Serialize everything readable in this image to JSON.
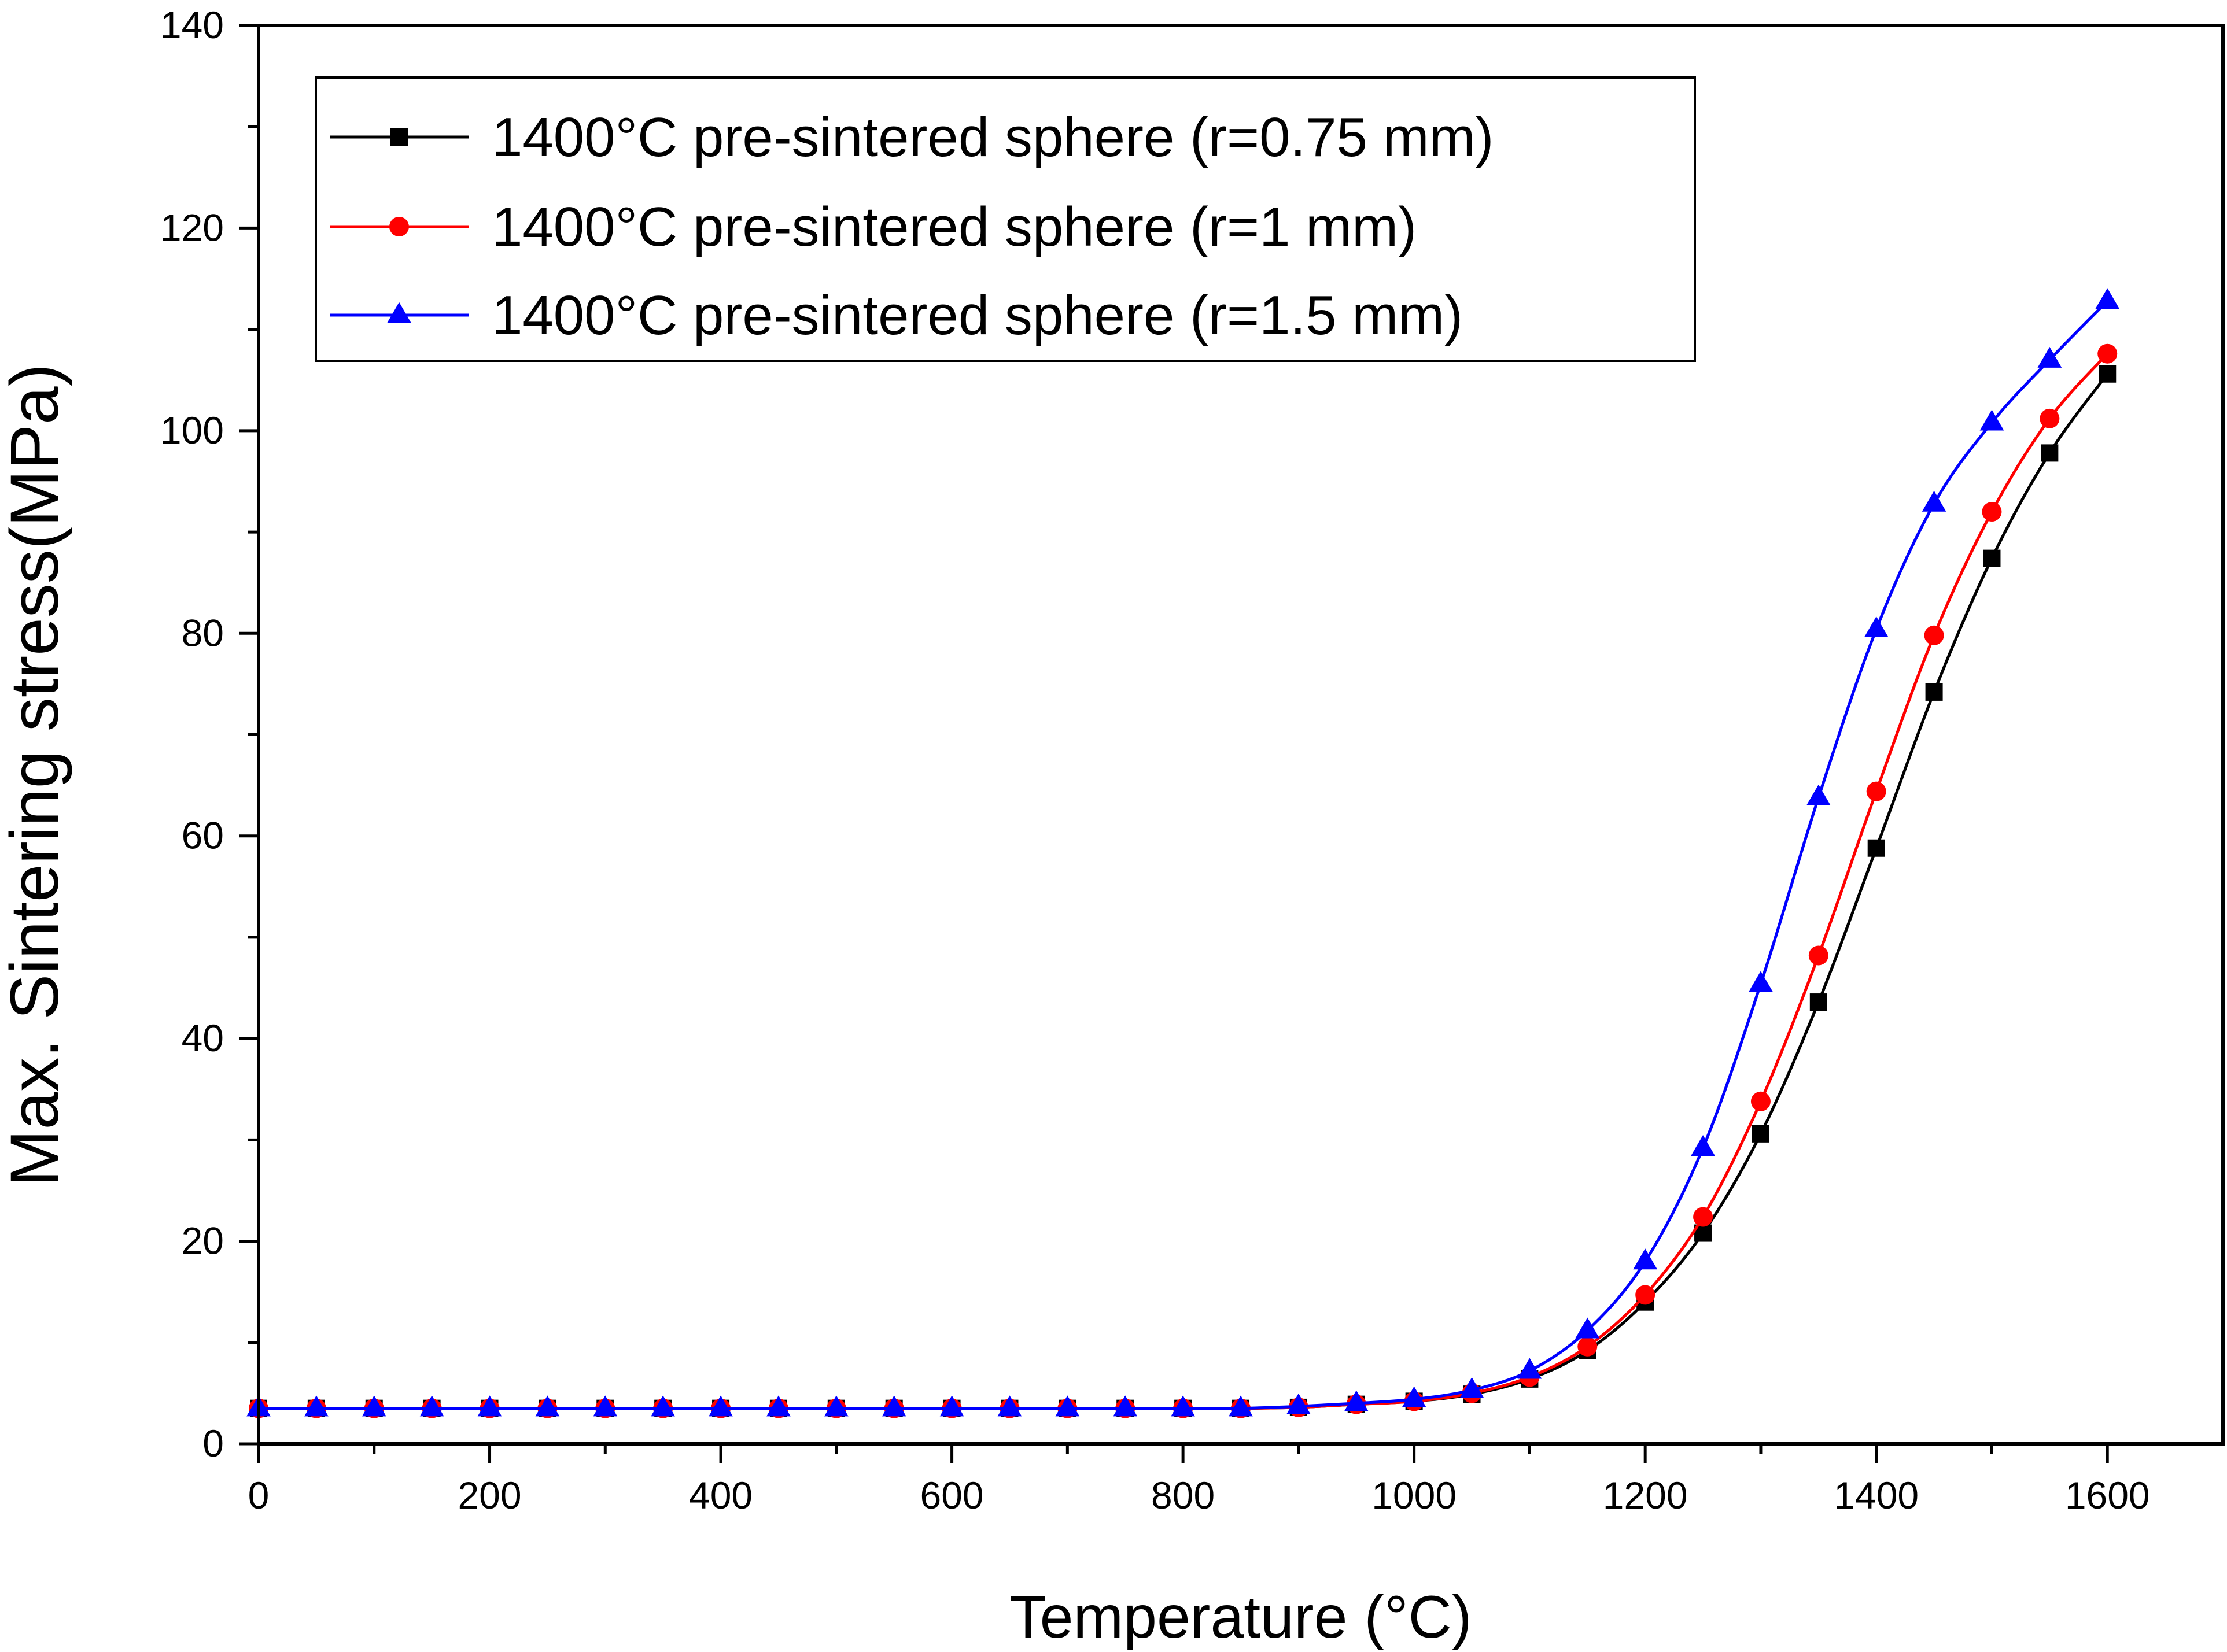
{
  "chart_data": {
    "type": "line",
    "title": "",
    "xlabel": "Temperature (°C)",
    "ylabel": "Max. Sintering stress(MPa)",
    "xlim": [
      0,
      1700
    ],
    "ylim": [
      0,
      140
    ],
    "xticks": [
      0,
      200,
      400,
      600,
      800,
      1000,
      1200,
      1400,
      1600
    ],
    "yticks": [
      0,
      20,
      40,
      60,
      80,
      100,
      120,
      140
    ],
    "x_tick_labels": [
      "0",
      "200",
      "400",
      "600",
      "800",
      "1000",
      "1200",
      "1400",
      "1600"
    ],
    "y_tick_labels": [
      "0",
      "20",
      "40",
      "60",
      "80",
      "100",
      "120",
      "140"
    ],
    "grid": false,
    "legend_position": "top-left",
    "x": [
      0,
      50,
      100,
      150,
      200,
      250,
      300,
      350,
      400,
      450,
      500,
      550,
      600,
      650,
      700,
      750,
      800,
      850,
      900,
      950,
      1000,
      1050,
      1100,
      1150,
      1200,
      1250,
      1300,
      1350,
      1400,
      1450,
      1500,
      1550,
      1600
    ],
    "series": [
      {
        "name": "1400°C pre-sintered sphere (r=0.75 mm)",
        "color": "#000000",
        "marker": "square",
        "values": [
          3.5,
          3.5,
          3.5,
          3.5,
          3.5,
          3.5,
          3.5,
          3.5,
          3.5,
          3.5,
          3.5,
          3.5,
          3.5,
          3.5,
          3.5,
          3.5,
          3.5,
          3.5,
          3.6,
          3.9,
          4.2,
          4.9,
          6.4,
          9.2,
          14.0,
          20.8,
          30.6,
          43.6,
          58.8,
          74.2,
          87.4,
          97.8,
          105.6
        ]
      },
      {
        "name": "1400°C pre-sintered sphere (r=1 mm)",
        "color": "#ff0000",
        "marker": "circle",
        "values": [
          3.5,
          3.5,
          3.5,
          3.5,
          3.5,
          3.5,
          3.5,
          3.5,
          3.5,
          3.5,
          3.5,
          3.5,
          3.5,
          3.5,
          3.5,
          3.5,
          3.5,
          3.5,
          3.6,
          3.9,
          4.2,
          5.0,
          6.6,
          9.6,
          14.7,
          22.4,
          33.8,
          48.2,
          64.4,
          79.8,
          92.0,
          101.2,
          107.6
        ]
      },
      {
        "name": "1400°C pre-sintered sphere (r=1.5 mm)",
        "color": "#0000ff",
        "marker": "triangle",
        "values": [
          3.5,
          3.5,
          3.5,
          3.5,
          3.5,
          3.5,
          3.5,
          3.5,
          3.5,
          3.5,
          3.5,
          3.5,
          3.5,
          3.5,
          3.5,
          3.5,
          3.5,
          3.5,
          3.7,
          4.0,
          4.4,
          5.3,
          7.2,
          11.2,
          18.0,
          29.2,
          45.4,
          63.8,
          80.4,
          92.8,
          100.8,
          107.0,
          112.8
        ]
      }
    ]
  }
}
